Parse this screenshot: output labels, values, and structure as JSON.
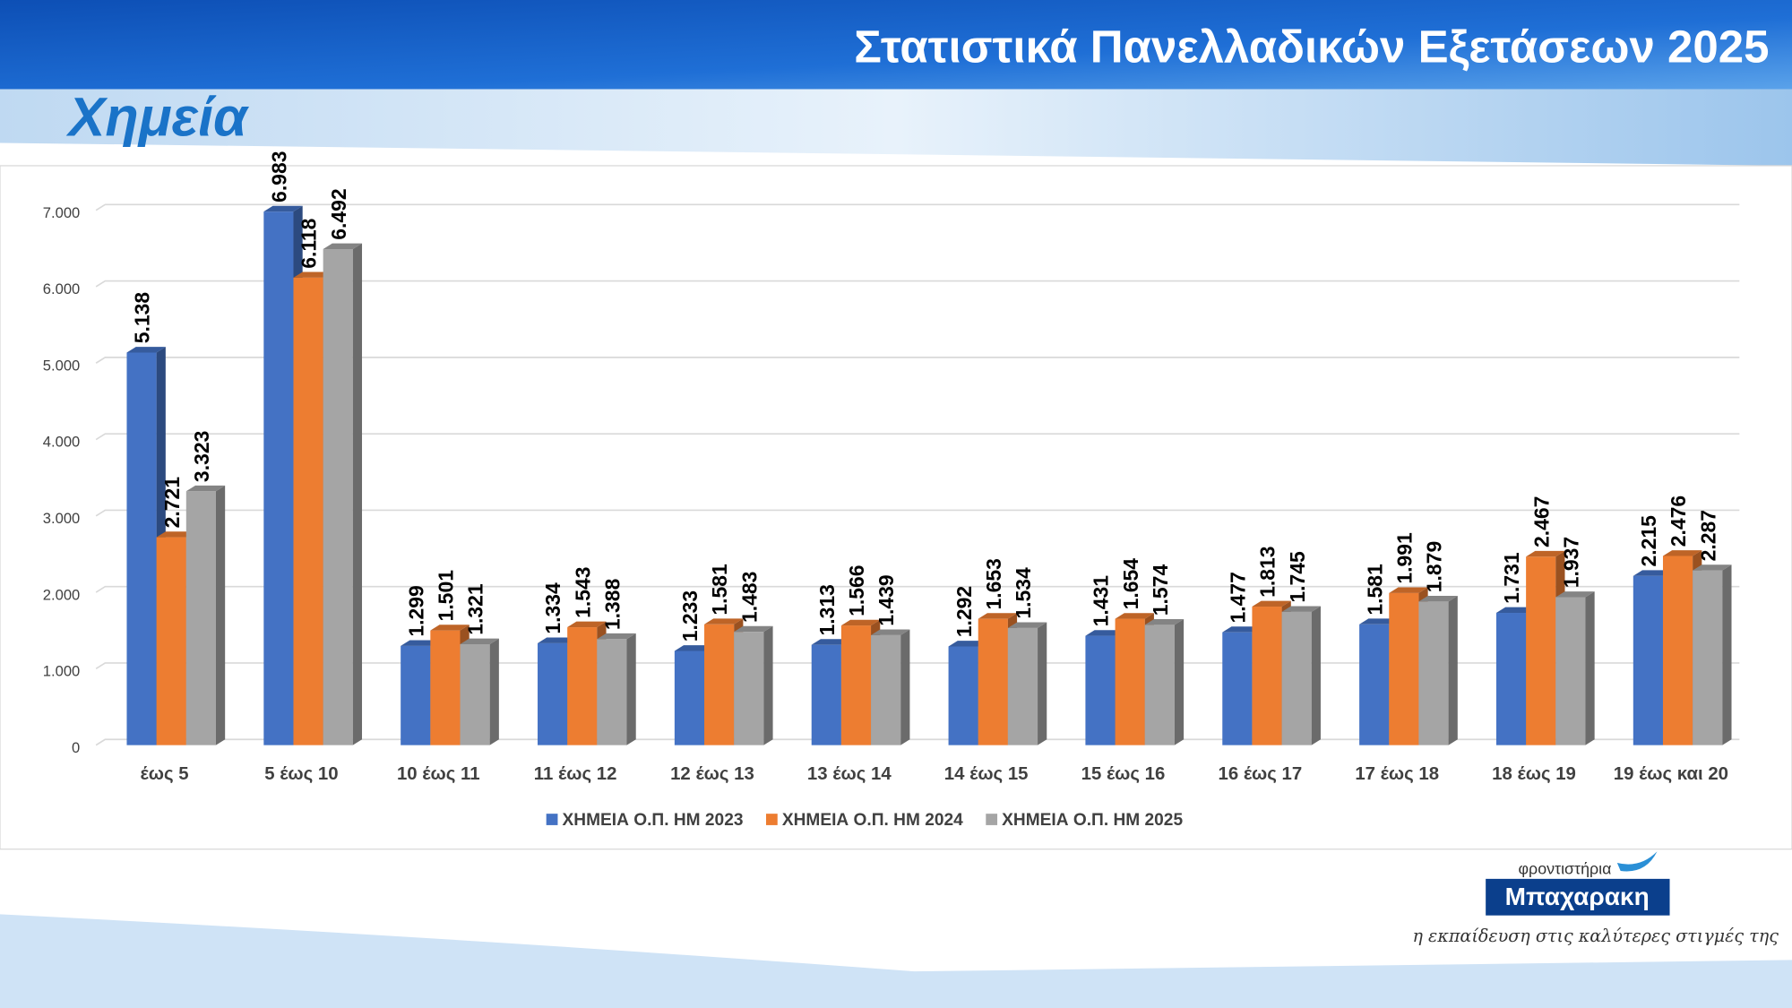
{
  "header": {
    "title": "Στατιστικά Πανελλαδικών Εξετάσεων 2025",
    "subject": "Χημεία"
  },
  "logo": {
    "top": "φροντιστήρια",
    "name": "Μπαχαρακη",
    "tagline": "η εκπαίδευση στις καλύτερες στιγμές της"
  },
  "chart_data": {
    "type": "bar3d",
    "categories": [
      "έως 5",
      "5 έως 10",
      "10 έως 11",
      "11 έως 12",
      "12 έως 13",
      "13 έως 14",
      "14 έως 15",
      "15 έως 16",
      "16 έως 17",
      "17 έως 18",
      "18 έως 19",
      "19 έως και 20"
    ],
    "series": [
      {
        "name": "ΧΗΜΕΙΑ Ο.Π. ΗΜ 2023",
        "color": "#4472c4",
        "values": [
          5138,
          6983,
          1299,
          1334,
          1233,
          1313,
          1292,
          1431,
          1477,
          1581,
          1731,
          2215
        ],
        "value_labels": [
          "5.138",
          "6.983",
          "1.299",
          "1.334",
          "1.233",
          "1.313",
          "1.292",
          "1.431",
          "1.477",
          "1.581",
          "1.731",
          "2.215"
        ]
      },
      {
        "name": "ΧΗΜΕΙΑ Ο.Π. ΗΜ 2024",
        "color": "#ed7d31",
        "values": [
          2721,
          6118,
          1501,
          1543,
          1581,
          1566,
          1653,
          1654,
          1813,
          1991,
          2467,
          2476
        ],
        "value_labels": [
          "2.721",
          "6.118",
          "1.501",
          "1.543",
          "1.581",
          "1.566",
          "1.653",
          "1.654",
          "1.813",
          "1.991",
          "2.467",
          "2.476"
        ]
      },
      {
        "name": "ΧΗΜΕΙΑ Ο.Π. ΗΜ 2025",
        "color": "#a5a5a5",
        "values": [
          3323,
          6492,
          1321,
          1388,
          1483,
          1439,
          1534,
          1574,
          1745,
          1879,
          1937,
          2287
        ],
        "value_labels": [
          "3.323",
          "6.492",
          "1.321",
          "1.388",
          "1.483",
          "1.439",
          "1.534",
          "1.574",
          "1.745",
          "1.879",
          "1.937",
          "2.287"
        ]
      }
    ],
    "ylim": [
      0,
      7000
    ],
    "yticks": [
      0,
      {
        "value": 1000,
        "label": "1.000"
      },
      {
        "value": 2000,
        "label": "2.000"
      },
      {
        "value": 3000,
        "label": "3.000"
      },
      {
        "value": 4000,
        "label": "4.000"
      },
      {
        "value": 5000,
        "label": "5.000"
      },
      {
        "value": 6000,
        "label": "6.000"
      },
      {
        "value": 7000,
        "label": "7.000"
      }
    ],
    "grid": true,
    "legend": "bottom"
  }
}
